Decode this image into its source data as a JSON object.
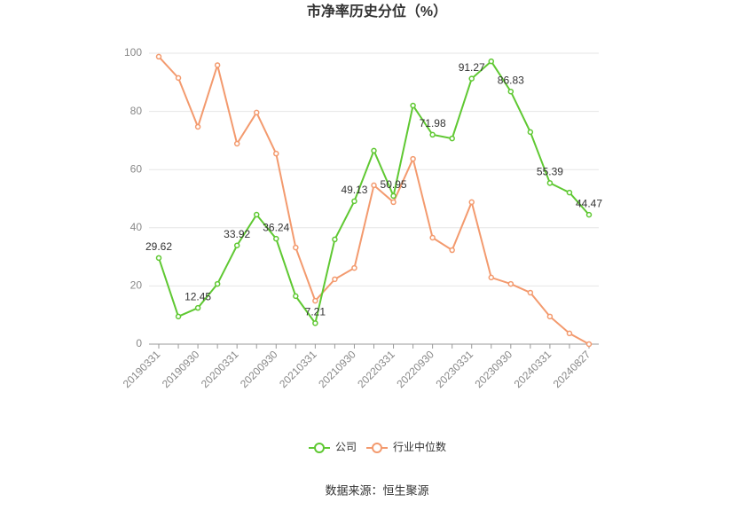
{
  "chart_data": {
    "type": "line",
    "title": "市净率历史分位（%）",
    "categories": [
      "20190331",
      null,
      "20190930",
      null,
      "20200331",
      null,
      "20200930",
      null,
      "20210331",
      null,
      "20210930",
      null,
      "20220331",
      null,
      "20220930",
      null,
      "20230331",
      null,
      "20230930",
      null,
      "20240331",
      null,
      "20240827"
    ],
    "series": [
      {
        "name": "公司",
        "color": "#5fc832",
        "values": [
          29.62,
          9.5,
          12.45,
          20.7,
          33.92,
          44.5,
          36.24,
          16.5,
          7.21,
          36,
          49.13,
          66.5,
          50.95,
          82,
          71.98,
          70.7,
          91.27,
          97.2,
          86.83,
          72.9,
          55.39,
          52.1,
          44.47
        ],
        "value_labels": [
          "29.62",
          null,
          "12.45",
          null,
          "33.92",
          null,
          "36.24",
          null,
          "7.21",
          null,
          "49.13",
          null,
          "50.95",
          null,
          "71.98",
          null,
          "91.27",
          null,
          "86.83",
          null,
          "55.39",
          null,
          "44.47"
        ]
      },
      {
        "name": "行业中位数",
        "color": "#f39a6e",
        "values": [
          98.8,
          91.5,
          74.7,
          95.9,
          68.9,
          79.6,
          65.5,
          33.2,
          14.9,
          22.3,
          26.2,
          54.6,
          48.8,
          63.7,
          36.6,
          32.3,
          48.8,
          22.9,
          20.7,
          17.7,
          9.5,
          3.7,
          0
        ]
      }
    ],
    "ylim": [
      0,
      100
    ],
    "yticks": [
      0,
      20,
      40,
      60,
      80,
      100
    ],
    "grid": true,
    "legend": "bottom"
  },
  "source": "数据来源：恒生聚源"
}
